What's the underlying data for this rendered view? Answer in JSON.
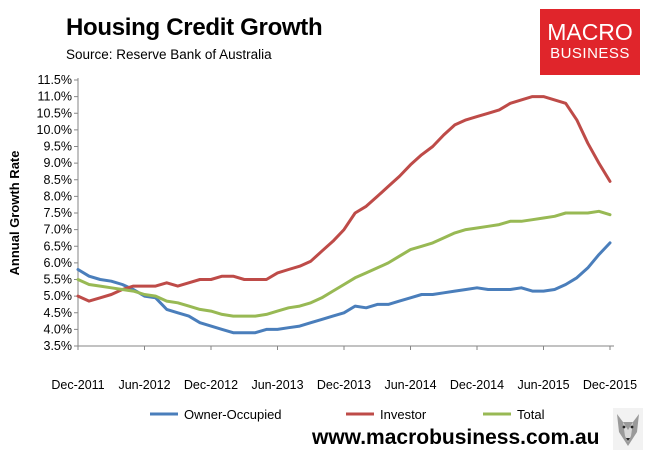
{
  "header": {
    "title": "Housing Credit Growth",
    "subtitle": "Source: Reserve Bank of Australia"
  },
  "logo": {
    "line1": "MACRO",
    "line2": "BUSINESS",
    "color": "#e0252b"
  },
  "footer": {
    "url": "www.macrobusiness.com.au",
    "mascot_icon": "wolf-icon"
  },
  "chart_data": {
    "type": "line",
    "title": "Housing Credit Growth",
    "xlabel": "",
    "ylabel": "Annual Growth Rate",
    "ylim": [
      3.5,
      11.5
    ],
    "ytick_labels": [
      "3.5%",
      "4.0%",
      "4.5%",
      "5.0%",
      "5.5%",
      "6.0%",
      "6.5%",
      "7.0%",
      "7.5%",
      "8.0%",
      "8.5%",
      "9.0%",
      "9.5%",
      "10.0%",
      "10.5%",
      "11.0%",
      "11.5%"
    ],
    "x_tick_labels": [
      "Dec-2011",
      "Jun-2012",
      "Dec-2012",
      "Jun-2013",
      "Dec-2013",
      "Jun-2014",
      "Dec-2014",
      "Jun-2015",
      "Dec-2015"
    ],
    "x_tick_index": [
      0,
      6,
      12,
      18,
      24,
      30,
      36,
      42,
      48
    ],
    "x": [
      "Dec-2011",
      "Jan-2012",
      "Feb-2012",
      "Mar-2012",
      "Apr-2012",
      "May-2012",
      "Jun-2012",
      "Jul-2012",
      "Aug-2012",
      "Sep-2012",
      "Oct-2012",
      "Nov-2012",
      "Dec-2012",
      "Jan-2013",
      "Feb-2013",
      "Mar-2013",
      "Apr-2013",
      "May-2013",
      "Jun-2013",
      "Jul-2013",
      "Aug-2013",
      "Sep-2013",
      "Oct-2013",
      "Nov-2013",
      "Dec-2013",
      "Jan-2014",
      "Feb-2014",
      "Mar-2014",
      "Apr-2014",
      "May-2014",
      "Jun-2014",
      "Jul-2014",
      "Aug-2014",
      "Sep-2014",
      "Oct-2014",
      "Nov-2014",
      "Dec-2014",
      "Jan-2015",
      "Feb-2015",
      "Mar-2015",
      "Apr-2015",
      "May-2015",
      "Jun-2015",
      "Jul-2015",
      "Aug-2015",
      "Sep-2015",
      "Oct-2015",
      "Nov-2015",
      "Dec-2015"
    ],
    "grid": false,
    "legend_position": "bottom",
    "series": [
      {
        "name": "Owner-Occupied",
        "color": "#4a7ebb",
        "values": [
          5.8,
          5.6,
          5.5,
          5.45,
          5.35,
          5.2,
          5.0,
          4.95,
          4.6,
          4.5,
          4.4,
          4.2,
          4.1,
          4.0,
          3.9,
          3.9,
          3.9,
          4.0,
          4.0,
          4.05,
          4.1,
          4.2,
          4.3,
          4.4,
          4.5,
          4.7,
          4.65,
          4.75,
          4.75,
          4.85,
          4.95,
          5.05,
          5.05,
          5.1,
          5.15,
          5.2,
          5.25,
          5.2,
          5.2,
          5.2,
          5.25,
          5.15,
          5.15,
          5.2,
          5.35,
          5.55,
          5.85,
          6.25,
          6.6
        ]
      },
      {
        "name": "Investor",
        "color": "#be4b48",
        "values": [
          5.0,
          4.85,
          4.95,
          5.05,
          5.2,
          5.3,
          5.3,
          5.3,
          5.4,
          5.3,
          5.4,
          5.5,
          5.5,
          5.6,
          5.6,
          5.5,
          5.5,
          5.5,
          5.7,
          5.8,
          5.9,
          6.05,
          6.35,
          6.65,
          7.0,
          7.5,
          7.7,
          8.0,
          8.3,
          8.6,
          8.95,
          9.25,
          9.5,
          9.85,
          10.15,
          10.3,
          10.4,
          10.5,
          10.6,
          10.8,
          10.9,
          11.0,
          11.0,
          10.9,
          10.8,
          10.3,
          9.6,
          9.0,
          8.45
        ]
      },
      {
        "name": "Total",
        "color": "#98b954",
        "values": [
          5.5,
          5.35,
          5.3,
          5.25,
          5.2,
          5.15,
          5.05,
          5.0,
          4.85,
          4.8,
          4.7,
          4.6,
          4.55,
          4.45,
          4.4,
          4.4,
          4.4,
          4.45,
          4.55,
          4.65,
          4.7,
          4.8,
          4.95,
          5.15,
          5.35,
          5.55,
          5.7,
          5.85,
          6.0,
          6.2,
          6.4,
          6.5,
          6.6,
          6.75,
          6.9,
          7.0,
          7.05,
          7.1,
          7.15,
          7.25,
          7.25,
          7.3,
          7.35,
          7.4,
          7.5,
          7.5,
          7.5,
          7.55,
          7.45
        ]
      }
    ]
  }
}
